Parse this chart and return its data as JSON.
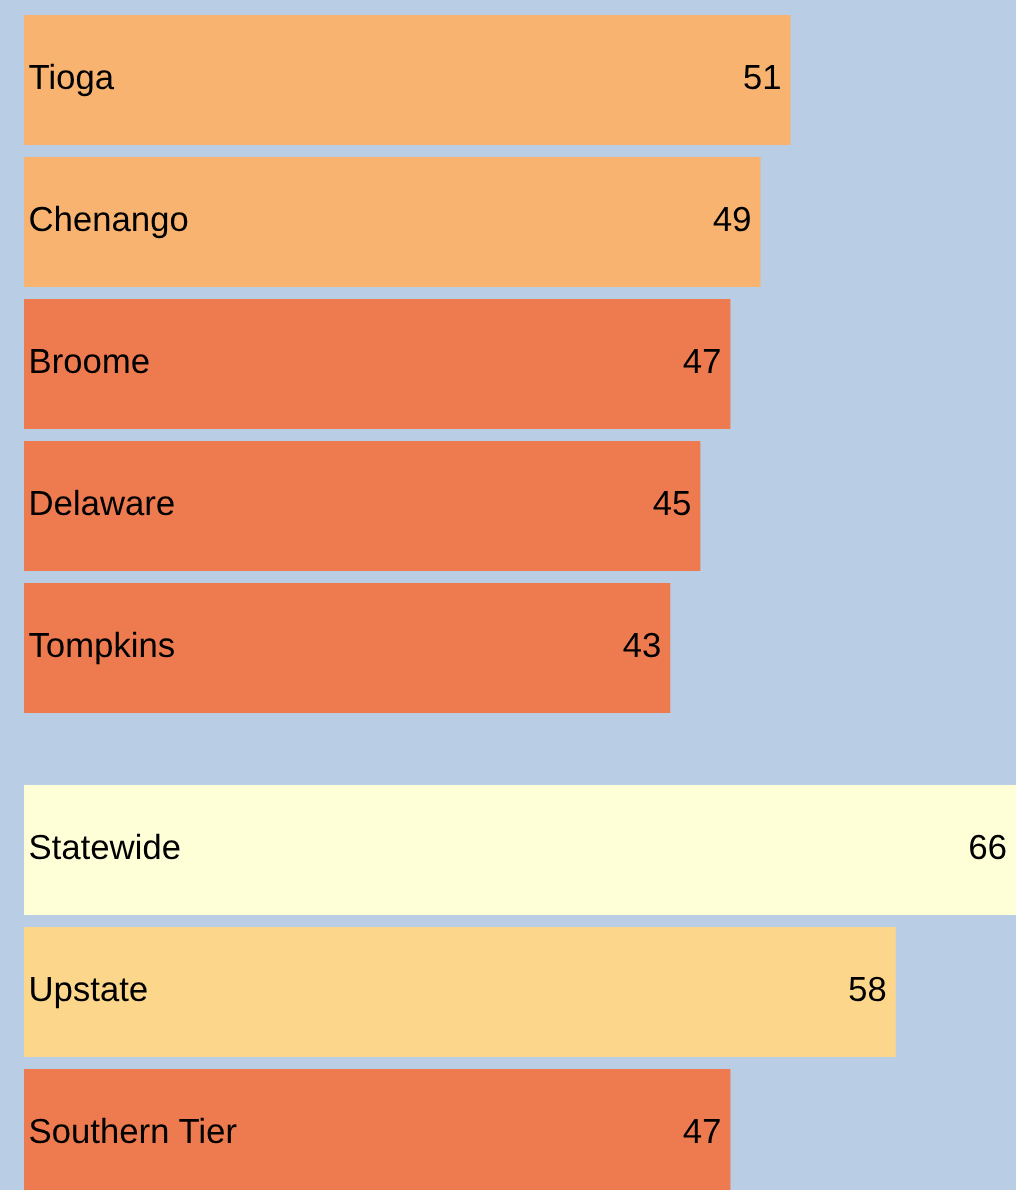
{
  "chart_data": [
    {
      "type": "bar",
      "orientation": "horizontal",
      "data_labels": true,
      "categories": [
        "Tioga",
        "Chenango",
        "Broome",
        "Delaware",
        "Tompkins"
      ],
      "values": [
        51,
        49,
        47,
        45,
        43
      ],
      "colors": [
        "#f7b36f",
        "#f7b36f",
        "#ee7b50",
        "#ee7b50",
        "#ee7b50"
      ]
    },
    {
      "type": "bar",
      "orientation": "horizontal",
      "data_labels": true,
      "categories": [
        "Statewide",
        "Upstate",
        "Southern Tier"
      ],
      "values": [
        66,
        58,
        47
      ],
      "colors": [
        "#ffffd7",
        "#fcd68b",
        "#ee7b50"
      ]
    }
  ]
}
